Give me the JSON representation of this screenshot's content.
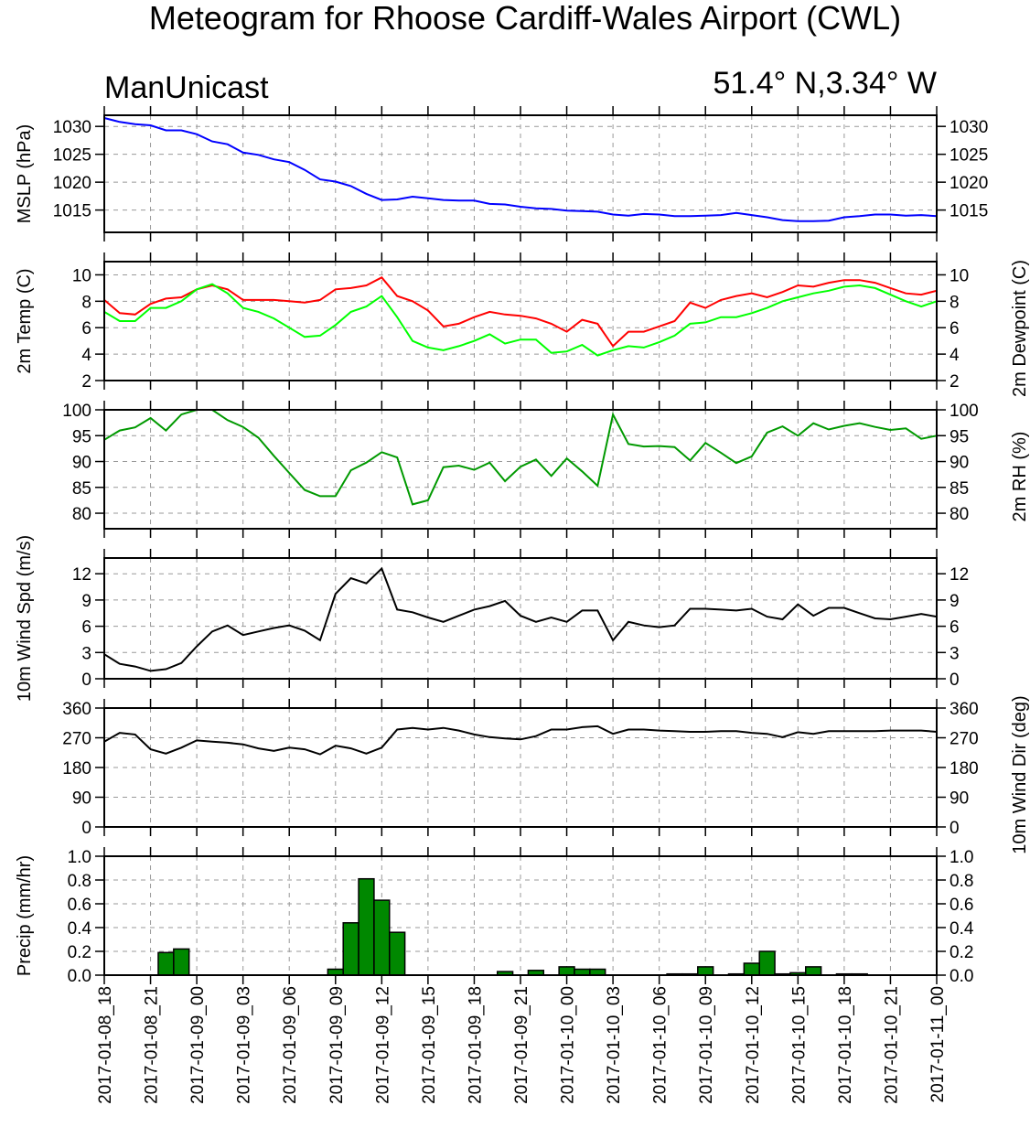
{
  "title": "Meteogram for Rhoose Cardiff-Wales Airport (CWL)",
  "model": "ManUnicast",
  "location": "51.4° N,3.34° W",
  "chart_data": {
    "type": "meteogram",
    "grid": true,
    "time_steps_hourly_from": "2017-01-08_18",
    "x_tick_labels": [
      "2017-01-08_18",
      "2017-01-08_21",
      "2017-01-09_00",
      "2017-01-09_03",
      "2017-01-09_06",
      "2017-01-09_09",
      "2017-01-09_12",
      "2017-01-09_15",
      "2017-01-09_18",
      "2017-01-09_21",
      "2017-01-10_00",
      "2017-01-10_03",
      "2017-01-10_06",
      "2017-01-10_09",
      "2017-01-10_12",
      "2017-01-10_15",
      "2017-01-10_18",
      "2017-01-10_21",
      "2017-01-11_00"
    ],
    "panels": [
      {
        "id": "mslp",
        "type": "line",
        "ylabel": "MSLP (hPa)",
        "ylabel_right": "",
        "ylim": [
          1011,
          1032
        ],
        "yticks": [
          1015,
          1020,
          1025,
          1030
        ],
        "series": [
          {
            "color": "#0000ff",
            "values": [
              1031.5,
              1030.8,
              1030.4,
              1030.2,
              1029.3,
              1029.3,
              1028.6,
              1027.3,
              1026.8,
              1025.3,
              1024.9,
              1024.1,
              1023.6,
              1022.2,
              1020.5,
              1020.1,
              1019.3,
              1017.9,
              1016.8,
              1016.9,
              1017.4,
              1017.1,
              1016.8,
              1016.7,
              1016.7,
              1016.1,
              1016.0,
              1015.6,
              1015.3,
              1015.2,
              1014.9,
              1014.8,
              1014.7,
              1014.2,
              1014.0,
              1014.3,
              1014.2,
              1013.9,
              1013.9,
              1014.0,
              1014.1,
              1014.5,
              1014.1,
              1013.7,
              1013.2,
              1013.0,
              1013.0,
              1013.1,
              1013.7,
              1013.9,
              1014.2,
              1014.2,
              1014.0,
              1014.1,
              1013.9
            ]
          }
        ]
      },
      {
        "id": "temp",
        "type": "line",
        "ylabel": "2m Temp (C)",
        "ylabel_right": "2m Dewpoint (C)",
        "ylim": [
          2,
          11
        ],
        "yticks": [
          2,
          4,
          6,
          8,
          10
        ],
        "series": [
          {
            "color": "#ff0000",
            "values": [
              8.1,
              7.1,
              7.0,
              7.8,
              8.2,
              8.3,
              8.9,
              9.2,
              8.9,
              8.1,
              8.1,
              8.1,
              8.0,
              7.9,
              8.1,
              8.9,
              9.0,
              9.2,
              9.8,
              8.4,
              8.0,
              7.3,
              6.1,
              6.3,
              6.8,
              7.2,
              7.0,
              6.9,
              6.7,
              6.3,
              5.7,
              6.6,
              6.3,
              4.6,
              5.7,
              5.7,
              6.1,
              6.5,
              7.9,
              7.5,
              8.1,
              8.4,
              8.6,
              8.3,
              8.7,
              9.2,
              9.1,
              9.4,
              9.6,
              9.6,
              9.4,
              9.0,
              8.6,
              8.5,
              8.8
            ]
          },
          {
            "color": "#00ff00",
            "values": [
              7.2,
              6.5,
              6.5,
              7.5,
              7.5,
              8.0,
              8.9,
              9.3,
              8.6,
              7.5,
              7.2,
              6.7,
              6.0,
              5.3,
              5.4,
              6.2,
              7.2,
              7.6,
              8.4,
              6.8,
              5.0,
              4.5,
              4.3,
              4.6,
              5.0,
              5.5,
              4.8,
              5.1,
              5.1,
              4.1,
              4.2,
              4.7,
              3.9,
              4.3,
              4.6,
              4.5,
              4.9,
              5.4,
              6.3,
              6.4,
              6.8,
              6.8,
              7.1,
              7.5,
              8.0,
              8.3,
              8.6,
              8.8,
              9.1,
              9.2,
              9.0,
              8.5,
              8.0,
              7.6,
              8.0
            ]
          }
        ]
      },
      {
        "id": "rh",
        "type": "line",
        "ylabel": "",
        "ylabel_right": "2m RH (%)",
        "ylim": [
          77,
          100
        ],
        "yticks": [
          80,
          85,
          90,
          95,
          100
        ],
        "series": [
          {
            "color": "#009900",
            "values": [
              94.2,
              96.0,
              96.6,
              98.4,
              96.0,
              99.1,
              100.0,
              100.0,
              98.0,
              96.7,
              94.6,
              91.1,
              87.8,
              84.5,
              83.3,
              83.3,
              88.3,
              89.8,
              91.8,
              90.8,
              81.7,
              82.5,
              88.9,
              89.2,
              88.4,
              89.8,
              86.2,
              89.0,
              90.4,
              87.2,
              90.6,
              88.1,
              85.3,
              99.1,
              93.4,
              92.9,
              93.0,
              92.8,
              90.2,
              93.6,
              91.7,
              89.7,
              91.0,
              95.6,
              96.8,
              95.0,
              97.4,
              96.2,
              96.9,
              97.4,
              96.7,
              96.1,
              96.4,
              94.4,
              95.0
            ]
          }
        ]
      },
      {
        "id": "wspd",
        "type": "line",
        "ylabel": "10m Wind Spd (m/s)",
        "ylabel_right": "",
        "ylim": [
          0,
          13.8
        ],
        "yticks": [
          0,
          3,
          6,
          9,
          12
        ],
        "series": [
          {
            "color": "#000000",
            "values": [
              2.8,
              1.7,
              1.4,
              0.9,
              1.1,
              1.8,
              3.7,
              5.4,
              6.1,
              5.0,
              5.4,
              5.8,
              6.1,
              5.5,
              4.4,
              9.7,
              11.5,
              10.9,
              12.6,
              7.9,
              7.6,
              7.0,
              6.5,
              7.2,
              7.9,
              8.3,
              8.9,
              7.2,
              6.5,
              7.0,
              6.5,
              7.8,
              7.8,
              4.4,
              6.5,
              6.1,
              5.9,
              6.1,
              8.0,
              8.0,
              7.9,
              7.8,
              8.0,
              7.1,
              6.8,
              8.5,
              7.2,
              8.1,
              8.1,
              7.5,
              6.9,
              6.8,
              7.1,
              7.4,
              7.1
            ]
          }
        ]
      },
      {
        "id": "wdir",
        "type": "line",
        "ylabel": "",
        "ylabel_right": "10m Wind Dir (deg)",
        "ylim": [
          0,
          360
        ],
        "yticks": [
          0,
          90,
          180,
          270,
          360
        ],
        "series": [
          {
            "color": "#000000",
            "values": [
              258,
              285,
              280,
              235,
              222,
              240,
              262,
              258,
              255,
              250,
              238,
              230,
              240,
              235,
              220,
              246,
              238,
              222,
              240,
              295,
              300,
              295,
              300,
              292,
              280,
              272,
              268,
              265,
              275,
              295,
              295,
              302,
              305,
              282,
              295,
              295,
              292,
              290,
              288,
              288,
              290,
              290,
              285,
              282,
              272,
              287,
              282,
              290,
              290,
              290,
              290,
              292,
              292,
              292,
              288
            ]
          }
        ]
      },
      {
        "id": "precip",
        "type": "bar",
        "ylabel": "Precip (mm/hr)",
        "ylabel_right": "",
        "ylim": [
          0,
          1.0
        ],
        "yticks": [
          0.0,
          0.2,
          0.4,
          0.6,
          0.8,
          1.0
        ],
        "ytick_labels": [
          "0.0",
          "0.2",
          "0.4",
          "0.6",
          "0.8",
          "1.0"
        ],
        "bar_color": "#008800",
        "values": [
          0,
          0,
          0,
          0,
          0.19,
          0.22,
          0,
          0,
          0,
          0,
          0,
          0,
          0,
          0,
          0,
          0.05,
          0.44,
          0.81,
          0.63,
          0.36,
          0,
          0,
          0,
          0,
          0,
          0,
          0.03,
          0,
          0.04,
          0,
          0.07,
          0.05,
          0.05,
          0,
          0,
          0,
          0,
          0.01,
          0.01,
          0.07,
          0,
          0.01,
          0.1,
          0.2,
          0.01,
          0.02,
          0.07,
          0,
          0.01,
          0.01,
          0,
          0,
          0,
          0,
          0
        ]
      }
    ]
  }
}
